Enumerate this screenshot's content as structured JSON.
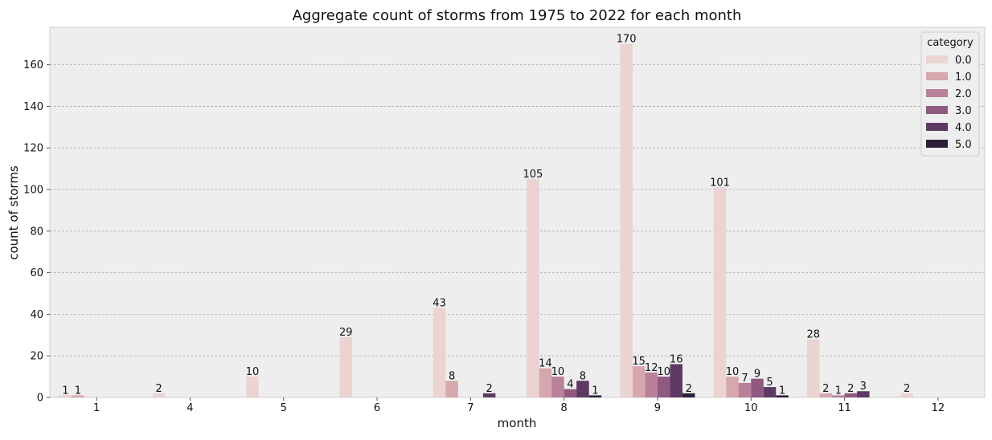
{
  "chart_data": {
    "type": "bar",
    "title": "Aggregate count of storms from 1975 to 2022 for each month",
    "xlabel": "month",
    "ylabel": "count of storms",
    "categories": [
      "1",
      "4",
      "5",
      "6",
      "7",
      "8",
      "9",
      "10",
      "11",
      "12"
    ],
    "ylim": [
      0,
      178
    ],
    "yticks": [
      "0",
      "20",
      "40",
      "60",
      "80",
      "100",
      "120",
      "140",
      "160"
    ],
    "grid": "y-axis dashed",
    "legend": {
      "title": "category",
      "placement": "top-right"
    },
    "series": [
      {
        "name": "0.0",
        "color": "#ead3d1",
        "values": [
          1,
          2,
          10,
          29,
          43,
          105,
          170,
          101,
          28,
          2
        ]
      },
      {
        "name": "1.0",
        "color": "#d6a8ad",
        "values": [
          1,
          null,
          null,
          null,
          8,
          14,
          15,
          10,
          2,
          null
        ]
      },
      {
        "name": "2.0",
        "color": "#b9809a",
        "values": [
          null,
          null,
          null,
          null,
          null,
          10,
          12,
          7,
          1,
          null
        ]
      },
      {
        "name": "3.0",
        "color": "#8f5981",
        "values": [
          null,
          null,
          null,
          null,
          null,
          4,
          10,
          9,
          2,
          null
        ]
      },
      {
        "name": "4.0",
        "color": "#5d3a63",
        "values": [
          null,
          null,
          null,
          null,
          2,
          8,
          16,
          5,
          3,
          null
        ]
      },
      {
        "name": "5.0",
        "color": "#2b1f39",
        "values": [
          null,
          null,
          null,
          null,
          null,
          1,
          2,
          1,
          null,
          null
        ]
      }
    ]
  }
}
